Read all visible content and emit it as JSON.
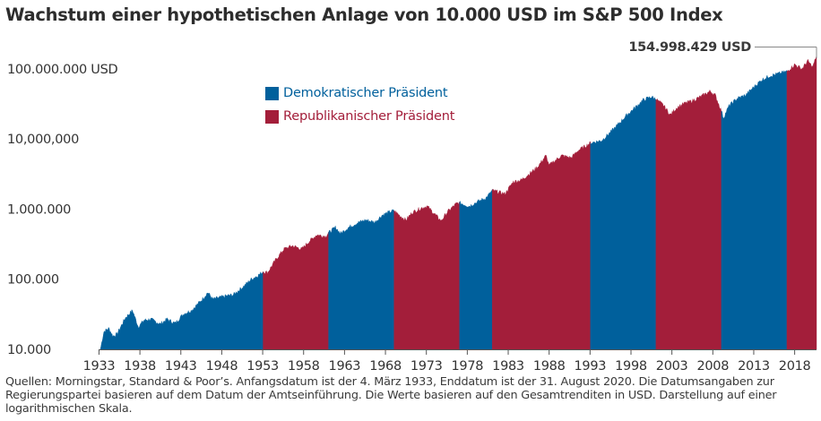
{
  "title": "Wachstum einer hypothetischen Anlage von 10.000 USD im S&P 500 Index",
  "footnote": "Quellen: Morningstar, Standard & Poor’s. Anfangsdatum ist der 4. März 1933, Enddatum ist der 31. August 2020. Die Datumsangaben zur Regierungspartei basieren auf dem Datum der Amtseinführung. Die Werte basieren auf den Gesamtrenditen in USD. Darstellung auf einer logarithmischen Skala.",
  "colors": {
    "democratic": "#00609c",
    "republican": "#a31e3a",
    "axis": "#555555",
    "text": "#333333"
  },
  "chart_data": {
    "type": "area",
    "title": "Wachstum einer hypothetischen Anlage von 10.000 USD im S&P 500 Index",
    "yscale": "log",
    "xlim": [
      1933.17,
      2020.67
    ],
    "ylim": [
      10000,
      160000000
    ],
    "y_ticks": [
      {
        "value": 10000,
        "label": "10.000"
      },
      {
        "value": 100000,
        "label": "100.000"
      },
      {
        "value": 1000000,
        "label": "1.000.000"
      },
      {
        "value": 10000000,
        "label": "10,000,000"
      },
      {
        "value": 100000000,
        "label": "100.000.000 USD"
      }
    ],
    "x_ticks": [
      1933,
      1938,
      1943,
      1948,
      1953,
      1958,
      1963,
      1968,
      1973,
      1978,
      1983,
      1988,
      1993,
      1998,
      2003,
      2008,
      2013,
      2018
    ],
    "legend": [
      {
        "party": "D",
        "label": "Demokratischer Präsident"
      },
      {
        "party": "R",
        "label": "Republikanischer Präsident"
      }
    ],
    "periods": [
      {
        "party": "D",
        "start": 1933.17,
        "end": 1953.05
      },
      {
        "party": "R",
        "start": 1953.05,
        "end": 1961.05
      },
      {
        "party": "D",
        "start": 1961.05,
        "end": 1969.05
      },
      {
        "party": "R",
        "start": 1969.05,
        "end": 1977.05
      },
      {
        "party": "D",
        "start": 1977.05,
        "end": 1981.05
      },
      {
        "party": "R",
        "start": 1981.05,
        "end": 1993.05
      },
      {
        "party": "D",
        "start": 1993.05,
        "end": 2001.05
      },
      {
        "party": "R",
        "start": 2001.05,
        "end": 2009.05
      },
      {
        "party": "D",
        "start": 2009.05,
        "end": 2017.05
      },
      {
        "party": "R",
        "start": 2017.05,
        "end": 2020.67
      }
    ],
    "series": [
      [
        1933.17,
        10000
      ],
      [
        1933.6,
        18000
      ],
      [
        1934.2,
        20000
      ],
      [
        1934.7,
        15500
      ],
      [
        1935.2,
        16500
      ],
      [
        1936.2,
        28000
      ],
      [
        1937.1,
        36000
      ],
      [
        1937.8,
        21000
      ],
      [
        1938.5,
        26000
      ],
      [
        1939.3,
        27000
      ],
      [
        1940.5,
        23000
      ],
      [
        1941.3,
        27000
      ],
      [
        1942.3,
        23500
      ],
      [
        1943.3,
        32000
      ],
      [
        1944.3,
        36000
      ],
      [
        1945.5,
        50000
      ],
      [
        1946.3,
        65000
      ],
      [
        1946.9,
        52000
      ],
      [
        1947.8,
        55000
      ],
      [
        1948.6,
        58000
      ],
      [
        1949.4,
        60000
      ],
      [
        1950.6,
        78000
      ],
      [
        1951.6,
        100000
      ],
      [
        1952.5,
        115000
      ],
      [
        1953.05,
        128000
      ],
      [
        1953.6,
        125000
      ],
      [
        1954.6,
        190000
      ],
      [
        1955.6,
        270000
      ],
      [
        1956.6,
        300000
      ],
      [
        1957.8,
        270000
      ],
      [
        1958.6,
        340000
      ],
      [
        1959.6,
        430000
      ],
      [
        1960.7,
        410000
      ],
      [
        1961.05,
        460000
      ],
      [
        1961.9,
        550000
      ],
      [
        1962.5,
        450000
      ],
      [
        1963.5,
        550000
      ],
      [
        1964.6,
        640000
      ],
      [
        1965.6,
        700000
      ],
      [
        1966.7,
        650000
      ],
      [
        1967.6,
        820000
      ],
      [
        1968.6,
        920000
      ],
      [
        1969.05,
        950000
      ],
      [
        1969.8,
        800000
      ],
      [
        1970.5,
        700000
      ],
      [
        1971.3,
        900000
      ],
      [
        1972.5,
        1050000
      ],
      [
        1973.1,
        1100000
      ],
      [
        1974.8,
        680000
      ],
      [
        1975.6,
        920000
      ],
      [
        1976.6,
        1180000
      ],
      [
        1977.05,
        1230000
      ],
      [
        1978.2,
        1100000
      ],
      [
        1979.4,
        1300000
      ],
      [
        1980.3,
        1450000
      ],
      [
        1980.9,
        1750000
      ],
      [
        1981.05,
        1850000
      ],
      [
        1982.6,
        1650000
      ],
      [
        1983.6,
        2450000
      ],
      [
        1984.6,
        2600000
      ],
      [
        1985.6,
        3200000
      ],
      [
        1986.6,
        4000000
      ],
      [
        1987.6,
        5800000
      ],
      [
        1988.0,
        4200000
      ],
      [
        1989.5,
        5800000
      ],
      [
        1990.7,
        5400000
      ],
      [
        1991.5,
        6800000
      ],
      [
        1992.5,
        8000000
      ],
      [
        1993.05,
        8800000
      ],
      [
        1994.4,
        9500000
      ],
      [
        1995.5,
        12500000
      ],
      [
        1996.5,
        16500000
      ],
      [
        1997.5,
        22000000
      ],
      [
        1998.5,
        28000000
      ],
      [
        1999.5,
        36000000
      ],
      [
        2000.5,
        40000000
      ],
      [
        2001.05,
        37000000
      ],
      [
        2002.0,
        30000000
      ],
      [
        2002.8,
        22000000
      ],
      [
        2003.6,
        28000000
      ],
      [
        2004.5,
        32000000
      ],
      [
        2005.5,
        35000000
      ],
      [
        2006.5,
        40000000
      ],
      [
        2007.7,
        48000000
      ],
      [
        2008.3,
        42000000
      ],
      [
        2009.05,
        25000000
      ],
      [
        2009.3,
        20000000
      ],
      [
        2010.0,
        30000000
      ],
      [
        2011.0,
        38000000
      ],
      [
        2012.0,
        42000000
      ],
      [
        2013.0,
        55000000
      ],
      [
        2014.0,
        70000000
      ],
      [
        2015.0,
        80000000
      ],
      [
        2016.0,
        85000000
      ],
      [
        2017.05,
        92000000
      ],
      [
        2018.0,
        115000000
      ],
      [
        2018.9,
        100000000
      ],
      [
        2019.6,
        130000000
      ],
      [
        2020.2,
        105000000
      ],
      [
        2020.67,
        154998429
      ]
    ],
    "annotation": {
      "label": "154.998.429 USD",
      "x": 2020.67,
      "y": 154998429
    }
  }
}
